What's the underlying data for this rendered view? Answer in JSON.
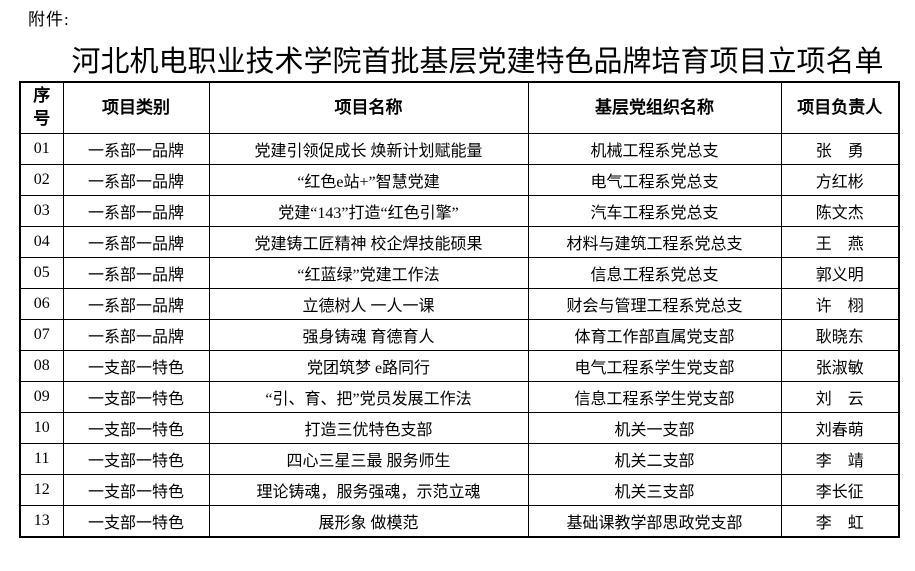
{
  "attachment_label": "附件:",
  "title": "河北机电职业技术学院首批基层党建特色品牌培育项目立项名单",
  "colors": {
    "text": "#000000",
    "background": "#ffffff",
    "border": "#000000"
  },
  "table": {
    "columns": [
      {
        "key": "no",
        "label": "序\n号"
      },
      {
        "key": "category",
        "label": "项目类别"
      },
      {
        "key": "name",
        "label": "项目名称"
      },
      {
        "key": "org",
        "label": "基层党组织名称"
      },
      {
        "key": "leader",
        "label": "项目负责人"
      }
    ],
    "rows": [
      [
        "01",
        "一系部一品牌",
        "党建引领促成长 焕新计划赋能量",
        "机械工程系党总支",
        "张　勇"
      ],
      [
        "02",
        "一系部一品牌",
        "“红色e站+”智慧党建",
        "电气工程系党总支",
        "方红彬"
      ],
      [
        "03",
        "一系部一品牌",
        "党建“143”打造“红色引擎”",
        "汽车工程系党总支",
        "陈文杰"
      ],
      [
        "04",
        "一系部一品牌",
        "党建铸工匠精神 校企焊技能硕果",
        "材料与建筑工程系党总支",
        "王　燕"
      ],
      [
        "05",
        "一系部一品牌",
        "“红蓝绿”党建工作法",
        "信息工程系党总支",
        "郭义明"
      ],
      [
        "06",
        "一系部一品牌",
        "立德树人 一人一课",
        "财会与管理工程系党总支",
        "许　栩"
      ],
      [
        "07",
        "一系部一品牌",
        "强身铸魂 育德育人",
        "体育工作部直属党支部",
        "耿晓东"
      ],
      [
        "08",
        "一支部一特色",
        "党团筑梦 e路同行",
        "电气工程系学生党支部",
        "张淑敏"
      ],
      [
        "09",
        "一支部一特色",
        "“引、育、把”党员发展工作法",
        "信息工程系学生党支部",
        "刘　云"
      ],
      [
        "10",
        "一支部一特色",
        "打造三优特色支部",
        "机关一支部",
        "刘春萌"
      ],
      [
        "11",
        "一支部一特色",
        "四心三星三最 服务师生",
        "机关二支部",
        "李　靖"
      ],
      [
        "12",
        "一支部一特色",
        "理论铸魂，服务强魂，示范立魂",
        "机关三支部",
        "李长征"
      ],
      [
        "13",
        "一支部一特色",
        "展形象 做模范",
        "基础课教学部思政党支部",
        "李　虹"
      ]
    ]
  }
}
